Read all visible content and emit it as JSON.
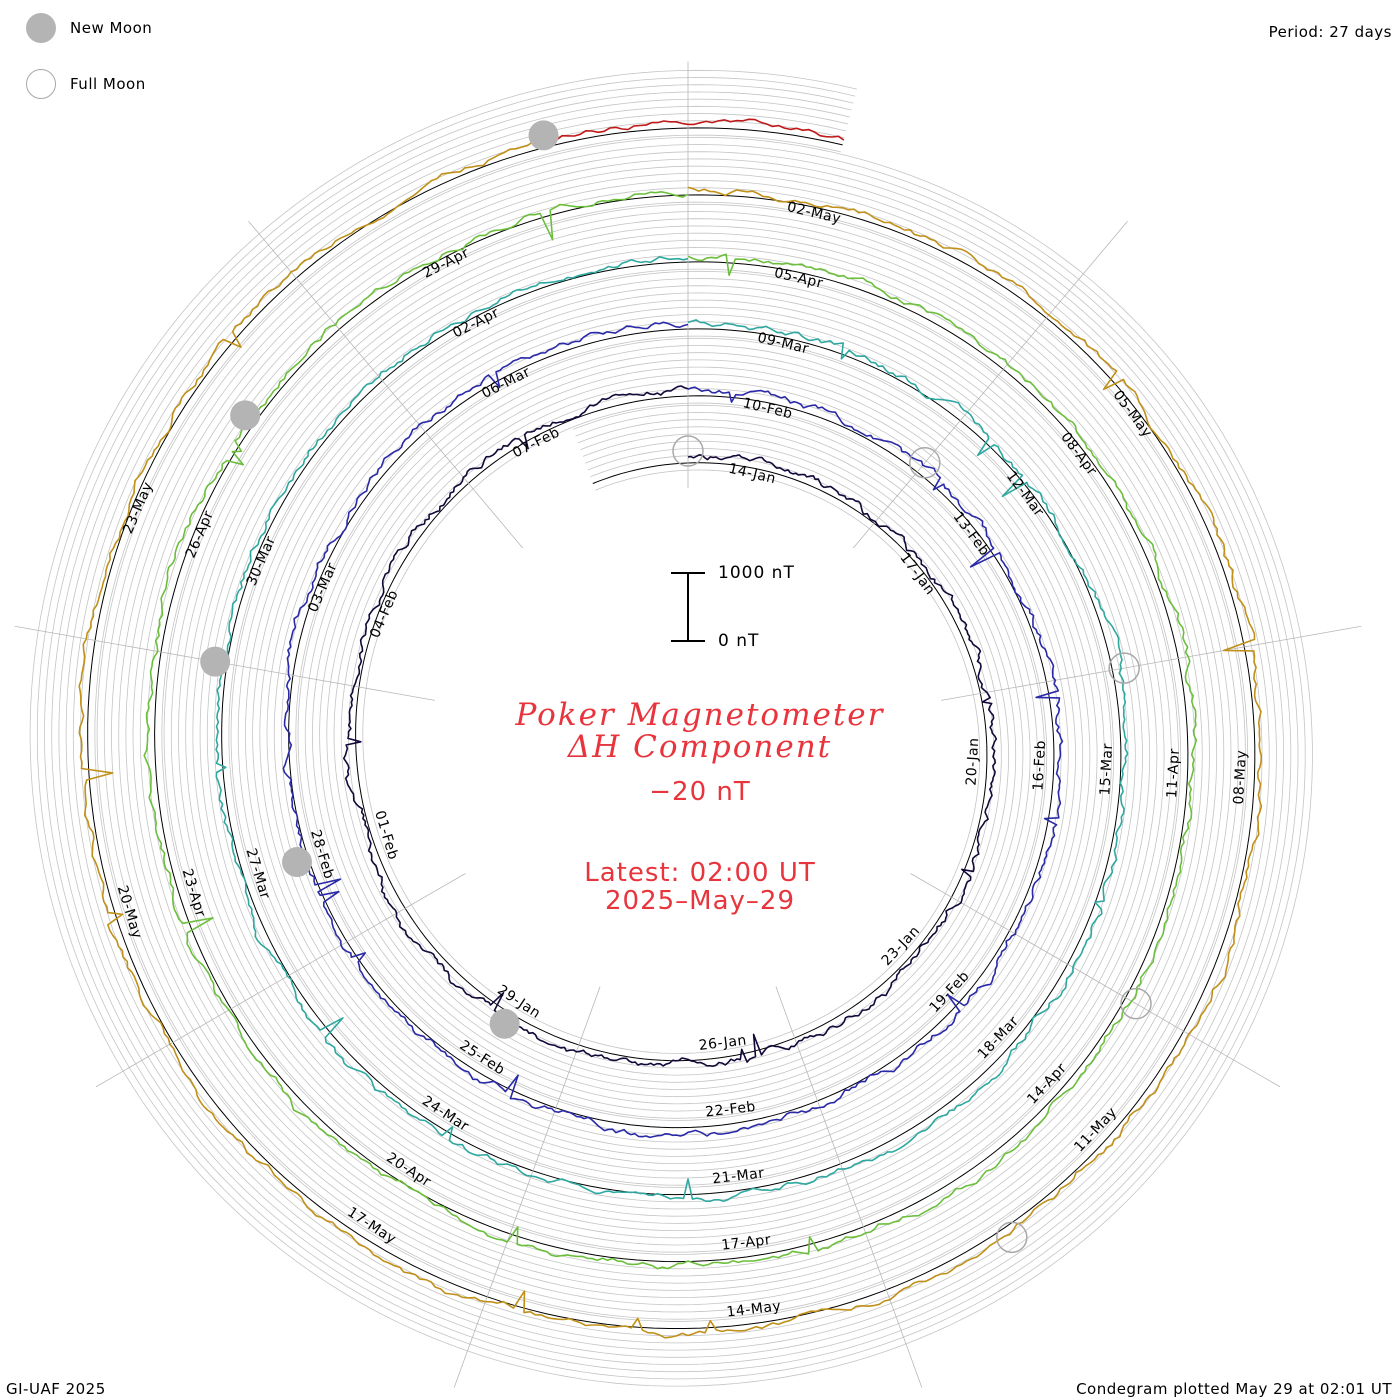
{
  "legend": {
    "new_moon_label": "New Moon",
    "full_moon_label": "Full Moon",
    "new_moon_color": "#b4b4b4",
    "full_moon_color": "#a8a8a8"
  },
  "period_label": "Period: 27 days",
  "footer_left": "GI-UAF 2025",
  "footer_right": "Condegram plotted May 29 at 02:01 UT",
  "center": {
    "title_line1": "Poker Magnetometer",
    "title_line2": "ΔH Component",
    "baseline_label": "−20 nT",
    "latest_label": "Latest: 02:00 UT",
    "latest_date": "2025–May–29",
    "scale_top": "1000 nT",
    "scale_bottom": "0 nT",
    "title_color": "#e8343c"
  },
  "chart_data": {
    "type": "line",
    "subtype": "condegram spiral (polar time series)",
    "period_days": 27,
    "quantity": "ΔH",
    "units": "nT",
    "scale_bar_nT": [
      0,
      1000
    ],
    "direction": "clockwise from top",
    "series": [
      {
        "start": "2025-01-13",
        "color": "#14083a",
        "date_labels": [
          "14-Jan",
          "17-Jan",
          "20-Jan",
          "23-Jan",
          "26-Jan",
          "29-Jan",
          "01-Feb",
          "04-Feb",
          "07-Feb"
        ]
      },
      {
        "start": "2025-02-09",
        "color": "#2a2aa8",
        "date_labels": [
          "10-Feb",
          "13-Feb",
          "16-Feb",
          "19-Feb",
          "22-Feb",
          "25-Feb",
          "28-Feb",
          "03-Mar",
          "06-Mar"
        ]
      },
      {
        "start": "2025-03-08",
        "color": "#2ea8a0",
        "date_labels": [
          "09-Mar",
          "12-Mar",
          "15-Mar",
          "18-Mar",
          "21-Mar",
          "24-Mar",
          "27-Mar",
          "30-Mar",
          "02-Apr"
        ]
      },
      {
        "start": "2025-04-04",
        "color": "#6cbf3c",
        "date_labels": [
          "05-Apr",
          "08-Apr",
          "11-Apr",
          "14-Apr",
          "17-Apr",
          "20-Apr",
          "23-Apr",
          "26-Apr",
          "29-Apr"
        ]
      },
      {
        "start": "2025-05-01",
        "color": "#c09018",
        "date_labels": [
          "02-May",
          "05-May",
          "08-May",
          "11-May",
          "14-May",
          "17-May",
          "20-May",
          "23-May"
        ]
      },
      {
        "start": "2025-05-27",
        "color": "#c01818",
        "date_labels": []
      }
    ],
    "new_moons": [
      "2025-01-29",
      "2025-02-28",
      "2025-03-29",
      "2025-04-27",
      "2025-05-27"
    ],
    "full_moons": [
      "2025-01-13",
      "2025-02-12",
      "2025-03-14",
      "2025-04-13",
      "2025-05-12"
    ]
  }
}
